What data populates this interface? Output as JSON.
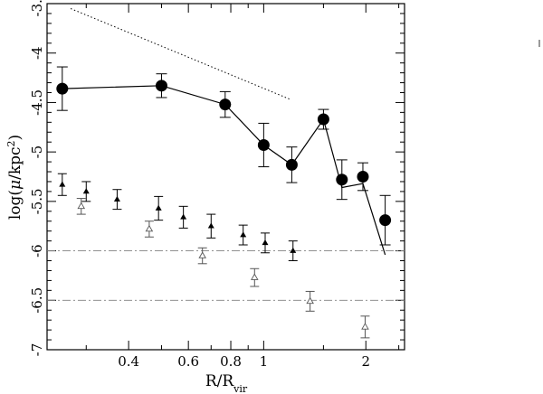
{
  "chart_data": {
    "type": "scatter",
    "title": "",
    "xlabel": "R/R_vir",
    "ylabel": "log(μ/kpc²)",
    "x_scale": "log",
    "xlim": [
      0.23,
      2.6
    ],
    "ylim": [
      -7.0,
      -3.5
    ],
    "x_ticks": [
      {
        "value": 0.4,
        "label": "0.4"
      },
      {
        "value": 0.6,
        "label": "0.6"
      },
      {
        "value": 0.8,
        "label": "0.8"
      },
      {
        "value": 1,
        "label": "1"
      },
      {
        "value": 2,
        "label": "2"
      }
    ],
    "y_ticks": [
      {
        "value": -3.5,
        "label": "-3.5"
      },
      {
        "value": -4,
        "label": "-4"
      },
      {
        "value": -4.5,
        "label": "-4.5"
      },
      {
        "value": -5,
        "label": "-5"
      },
      {
        "value": -5.5,
        "label": "-5.5"
      },
      {
        "value": -6,
        "label": "-6"
      },
      {
        "value": -6.5,
        "label": "-6.5"
      },
      {
        "value": -7,
        "label": "-7"
      }
    ],
    "grid": false,
    "legend": null,
    "series": [
      {
        "marker": "filled-circle",
        "color": "#000000",
        "points": [
          {
            "x": 0.255,
            "y": -4.36,
            "err": 0.22
          },
          {
            "x": 0.5,
            "y": -4.33,
            "err": 0.12
          },
          {
            "x": 0.77,
            "y": -4.52,
            "err": 0.13
          },
          {
            "x": 1.0,
            "y": -4.93,
            "err": 0.22
          },
          {
            "x": 1.21,
            "y": -5.13,
            "err": 0.18
          },
          {
            "x": 1.5,
            "y": -4.67,
            "err": 0.1
          },
          {
            "x": 1.7,
            "y": -5.28,
            "err": 0.2
          },
          {
            "x": 1.96,
            "y": -5.25,
            "err": 0.14
          },
          {
            "x": 2.28,
            "y": -5.69,
            "err": 0.25
          }
        ]
      },
      {
        "marker": "line",
        "color": "#000000",
        "points": [
          {
            "x": 0.255,
            "y": -4.36
          },
          {
            "x": 0.5,
            "y": -4.33
          },
          {
            "x": 0.77,
            "y": -4.52
          },
          {
            "x": 1.0,
            "y": -4.93
          },
          {
            "x": 1.21,
            "y": -5.13
          },
          {
            "x": 1.5,
            "y": -4.67
          },
          {
            "x": 1.7,
            "y": -5.36
          },
          {
            "x": 1.96,
            "y": -5.32
          },
          {
            "x": 2.28,
            "y": -6.04
          }
        ]
      },
      {
        "marker": "filled-triangle",
        "color": "#000000",
        "points": [
          {
            "x": 0.255,
            "y": -5.33,
            "err": 0.11
          },
          {
            "x": 0.3,
            "y": -5.4,
            "err": 0.1
          },
          {
            "x": 0.37,
            "y": -5.48,
            "err": 0.1
          },
          {
            "x": 0.49,
            "y": -5.57,
            "err": 0.12
          },
          {
            "x": 0.58,
            "y": -5.66,
            "err": 0.11
          },
          {
            "x": 0.7,
            "y": -5.75,
            "err": 0.12
          },
          {
            "x": 0.87,
            "y": -5.84,
            "err": 0.1
          },
          {
            "x": 1.01,
            "y": -5.92,
            "err": 0.1
          },
          {
            "x": 1.22,
            "y": -6.0,
            "err": 0.1
          }
        ]
      },
      {
        "marker": "open-triangle",
        "color": "#555555",
        "points": [
          {
            "x": 0.29,
            "y": -5.55,
            "err": 0.08
          },
          {
            "x": 0.46,
            "y": -5.78,
            "err": 0.08
          },
          {
            "x": 0.66,
            "y": -6.05,
            "err": 0.08
          },
          {
            "x": 0.94,
            "y": -6.27,
            "err": 0.09
          },
          {
            "x": 1.37,
            "y": -6.51,
            "err": 0.1
          },
          {
            "x": 1.99,
            "y": -6.77,
            "err": 0.11
          }
        ]
      },
      {
        "marker": "dotted-line",
        "color": "#000000",
        "points": [
          {
            "x": 0.27,
            "y": -3.55
          },
          {
            "x": 1.2,
            "y": -4.47
          }
        ]
      },
      {
        "marker": "dash-dot-hline",
        "color": "#808080",
        "points": [
          {
            "x": 0.23,
            "y": -6.0
          },
          {
            "x": 2.6,
            "y": -6.0
          }
        ]
      },
      {
        "marker": "dash-dot-hline",
        "color": "#808080",
        "points": [
          {
            "x": 0.23,
            "y": -6.5
          },
          {
            "x": 2.6,
            "y": -6.5
          }
        ]
      }
    ]
  }
}
